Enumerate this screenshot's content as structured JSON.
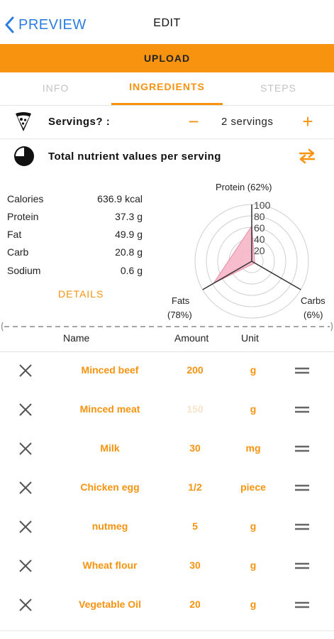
{
  "nav": {
    "back_label": "PREVIEW",
    "title": "EDIT"
  },
  "upload_label": "UPLOAD",
  "tabs": [
    {
      "label": "INFO",
      "active": false
    },
    {
      "label": "INGREDIENTS",
      "active": true
    },
    {
      "label": "STEPS",
      "active": false
    }
  ],
  "servings": {
    "label": "Servings? :",
    "value": "2 servings",
    "minus": "−",
    "plus": "+"
  },
  "nutrients": {
    "title": "Total nutrient values per serving",
    "items": [
      {
        "label": "Calories",
        "value": "636.9 kcal"
      },
      {
        "label": "Protein",
        "value": "37.3 g"
      },
      {
        "label": "Fat",
        "value": "49.9 g"
      },
      {
        "label": "Carb",
        "value": "20.8 g"
      },
      {
        "label": "Sodium",
        "value": "0.6 g"
      }
    ],
    "details_label": "DETAILS"
  },
  "chart_data": {
    "type": "radar",
    "axes": [
      "Protein (62%)",
      "Fats (78%)",
      "Carbs (6%)"
    ],
    "axis_label_parts": [
      [
        "Protein (62%)"
      ],
      [
        "Fats",
        "(78%)"
      ],
      [
        "Carbs",
        "(6%)"
      ]
    ],
    "values": [
      62,
      78,
      6
    ],
    "ticks": [
      20,
      40,
      60,
      80,
      100
    ],
    "range": [
      0,
      100
    ],
    "fill_color": "#f7b6c8",
    "stroke_color": "#e98aa6"
  },
  "columns": {
    "name": "Name",
    "amount": "Amount",
    "unit": "Unit"
  },
  "ingredients": [
    {
      "name": "Minced beef",
      "amount": "200",
      "unit": "g"
    },
    {
      "name": "Minced meat",
      "amount": "150",
      "unit": "g",
      "faded_amount": true
    },
    {
      "name": "Milk",
      "amount": "30",
      "unit": "mg"
    },
    {
      "name": "Chicken egg",
      "amount": "1/2",
      "unit": "piece"
    },
    {
      "name": "nutmeg",
      "amount": "5",
      "unit": "g"
    },
    {
      "name": "Wheat flour",
      "amount": "30",
      "unit": "g"
    },
    {
      "name": "Vegetable Oil",
      "amount": "20",
      "unit": "g"
    }
  ],
  "colors": {
    "accent": "#f7930f",
    "link": "#2b7de1"
  }
}
